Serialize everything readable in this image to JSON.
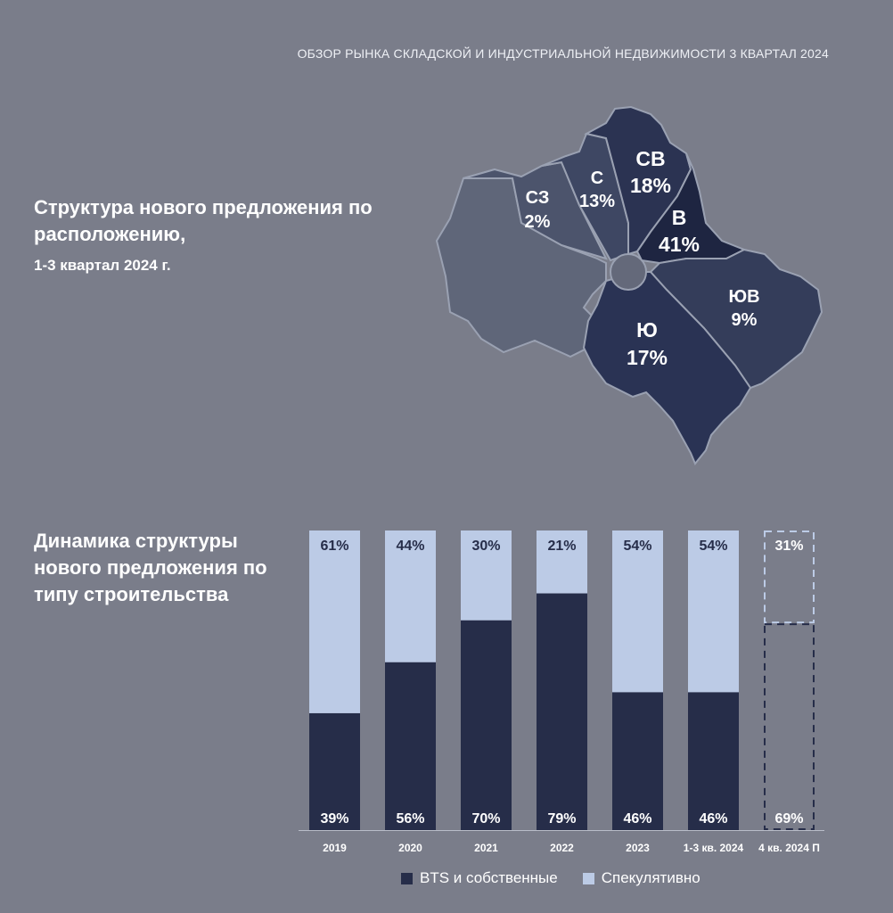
{
  "header": {
    "title": "ОБЗОР РЫНКА СКЛАДСКОЙ И ИНДУСТРИАЛЬНОЙ НЕДВИЖИМОСТИ 3 КВАРТАЛ 2024"
  },
  "map_section": {
    "title": "Структура нового предложения по расположению,",
    "subtitle": "1-3 квартал 2024 г.",
    "regions": [
      {
        "name": "СЗ",
        "share": "2%"
      },
      {
        "name": "С",
        "share": "13%"
      },
      {
        "name": "СВ",
        "share": "18%"
      },
      {
        "name": "В",
        "share": "41%"
      },
      {
        "name": "ЮВ",
        "share": "9%"
      },
      {
        "name": "Ю",
        "share": "17%"
      }
    ]
  },
  "chart_section": {
    "title": "Динамика структуры нового предложения по типу строительства"
  },
  "colors": {
    "bts": "#262d49",
    "spec": "#bccbe6",
    "background": "#7a7d8a"
  },
  "chart_data": {
    "type": "bar",
    "stacked": true,
    "normalized_percent": true,
    "categories": [
      "2019",
      "2020",
      "2021",
      "2022",
      "2023",
      "1-3 кв. 2024",
      "4 кв. 2024 П"
    ],
    "series": [
      {
        "name": "BTS и собственные",
        "values": [
          39,
          56,
          70,
          79,
          46,
          46,
          69
        ],
        "labels": [
          "39%",
          "56%",
          "70%",
          "79%",
          "46%",
          "46%",
          "69%"
        ]
      },
      {
        "name": "Спекулятивно",
        "values": [
          61,
          44,
          30,
          21,
          54,
          54,
          31
        ],
        "labels": [
          "61%",
          "44%",
          "30%",
          "21%",
          "54%",
          "54%",
          "31%"
        ]
      }
    ],
    "forecast_category": "4 кв. 2024 П",
    "ylim": [
      0,
      100
    ],
    "legend": "bottom"
  }
}
